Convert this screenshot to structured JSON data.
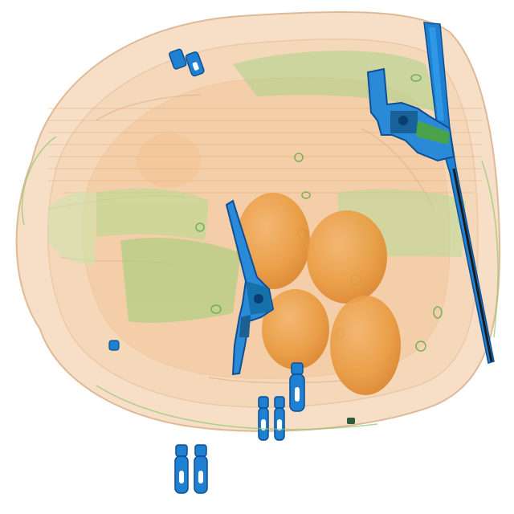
{
  "image": {
    "kind": "x-ray baggage scan",
    "background": "#ffffff"
  },
  "palette": {
    "organic": "#f0a868",
    "organic_dense": "#e8892a",
    "mixed": "#9ccc6a",
    "mixed_dense": "#5fb04a",
    "metal": "#1f7fd0",
    "metal_dense": "#0d4f94",
    "edge": "#c9a07a"
  },
  "objects": [
    {
      "name": "revolver",
      "count": 2
    },
    {
      "name": "round-organic-item",
      "count": 5
    },
    {
      "name": "zipper-pull",
      "count": 6
    },
    {
      "name": "rod",
      "count": 1
    }
  ]
}
